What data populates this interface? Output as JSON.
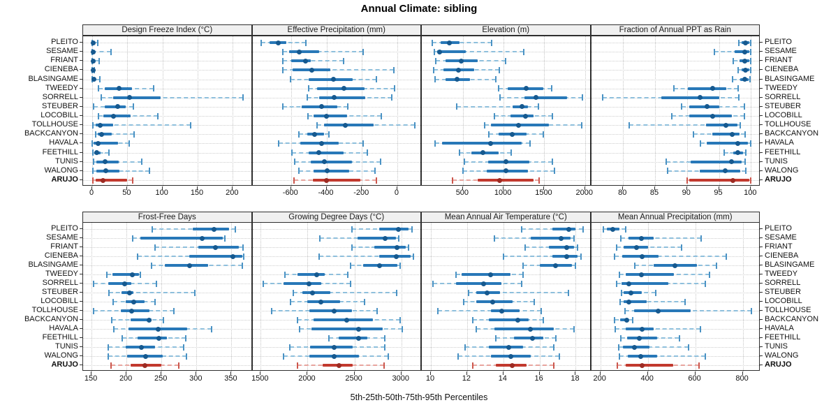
{
  "title": "Annual Climate: sibling",
  "caption": "5th-25th-50th-75th-95th Percentiles",
  "stations": [
    "PLEITO",
    "SESAME",
    "FRIANT",
    "CIENEBA",
    "BLASINGAME",
    "TWEEDY",
    "SORRELL",
    "STEUBER",
    "LOCOBILL",
    "TOLLHOUSE",
    "BACKCANYON",
    "HAVALA",
    "FEETHILL",
    "TUNIS",
    "WALONG",
    "ARUJO"
  ],
  "highlight_station": "ARUJO",
  "colors": {
    "blue_dot": "#16598f",
    "blue_bar": "#2878b8",
    "blue_whisker": "#8ebfdc",
    "blue_cap": "#4a92c4",
    "red_dot": "#9c2b23",
    "red_bar": "#c2392e",
    "red_whisker": "#e8a49e",
    "red_cap": "#cc574d",
    "strip_bg": "#f0f0f0",
    "grid": "#c4c4c4",
    "border": "#2f2f2f"
  },
  "chart_data": [
    {
      "type": "scatter",
      "variant": "percentile-dotplot",
      "row": 0,
      "col": 0,
      "title": "Design Freeze Index (°C)",
      "ticks": [
        0,
        50,
        100,
        150,
        200
      ],
      "xlim": [
        -13,
        228
      ],
      "percentile_labels": [
        5,
        25,
        50,
        75,
        95
      ],
      "values": [
        [
          0,
          0,
          1,
          3,
          8
        ],
        [
          0,
          0,
          1,
          3,
          27
        ],
        [
          0,
          0,
          1,
          2,
          10
        ],
        [
          0,
          0,
          1,
          1,
          3
        ],
        [
          0,
          1,
          2,
          4,
          11
        ],
        [
          9,
          18,
          38,
          57,
          87
        ],
        [
          13,
          30,
          53,
          97,
          215
        ],
        [
          2,
          18,
          36,
          48,
          59
        ],
        [
          9,
          16,
          30,
          55,
          93
        ],
        [
          1,
          5,
          11,
          30,
          140
        ],
        [
          5,
          8,
          13,
          28,
          60
        ],
        [
          0,
          2,
          8,
          37,
          53
        ],
        [
          1,
          3,
          6,
          12,
          24
        ],
        [
          2,
          6,
          18,
          38,
          70
        ],
        [
          1,
          6,
          19,
          39,
          81
        ],
        [
          1,
          5,
          15,
          50,
          58
        ]
      ]
    },
    {
      "type": "scatter",
      "variant": "percentile-dotplot",
      "row": 0,
      "col": 1,
      "title": "Effective Precipitation (mm)",
      "ticks": [
        -600,
        -400,
        -200,
        0
      ],
      "xlim": [
        -818,
        138
      ],
      "percentile_labels": [
        5,
        25,
        50,
        75,
        95
      ],
      "values": [
        [
          -770,
          -720,
          -673,
          -625,
          -515
        ],
        [
          -645,
          -610,
          -555,
          -440,
          -195
        ],
        [
          -645,
          -600,
          -517,
          -490,
          -305
        ],
        [
          -645,
          -590,
          -483,
          -378,
          -20
        ],
        [
          -605,
          -500,
          -360,
          -252,
          -120
        ],
        [
          -500,
          -453,
          -303,
          -185,
          -15
        ],
        [
          -510,
          -440,
          -358,
          -180,
          -30
        ],
        [
          -648,
          -540,
          -426,
          -340,
          -280
        ],
        [
          -505,
          -473,
          -401,
          -283,
          -90
        ],
        [
          -455,
          -412,
          -293,
          -133,
          98
        ],
        [
          -555,
          -507,
          -469,
          -412,
          -385
        ],
        [
          -670,
          -548,
          -429,
          -330,
          -195
        ],
        [
          -595,
          -500,
          -442,
          -305,
          -170
        ],
        [
          -578,
          -487,
          -412,
          -256,
          -95
        ],
        [
          -555,
          -473,
          -396,
          -270,
          -125
        ],
        [
          -582,
          -478,
          -399,
          -208,
          -120
        ]
      ]
    },
    {
      "type": "scatter",
      "variant": "percentile-dotplot",
      "row": 0,
      "col": 2,
      "title": "Elevation (m)",
      "ticks": [
        500,
        1000,
        1500,
        2000
      ],
      "xlim": [
        -5,
        2075
      ],
      "percentile_labels": [
        5,
        25,
        50,
        75,
        95
      ],
      "values": [
        [
          120,
          230,
          330,
          460,
          850
        ],
        [
          150,
          180,
          217,
          535,
          1250
        ],
        [
          170,
          290,
          483,
          680,
          1025
        ],
        [
          140,
          260,
          442,
          635,
          945
        ],
        [
          160,
          290,
          425,
          590,
          900
        ],
        [
          940,
          1050,
          1280,
          1490,
          1590
        ],
        [
          955,
          1255,
          1400,
          1775,
          1965
        ],
        [
          420,
          1110,
          1223,
          1300,
          1430
        ],
        [
          890,
          1085,
          1265,
          1370,
          1600
        ],
        [
          770,
          840,
          1185,
          1560,
          1960
        ],
        [
          820,
          940,
          1107,
          1285,
          1490
        ],
        [
          160,
          245,
          838,
          1225,
          1325
        ],
        [
          457,
          607,
          743,
          940,
          1090
        ],
        [
          520,
          810,
          1025,
          1315,
          1595
        ],
        [
          500,
          795,
          1025,
          1300,
          1625
        ],
        [
          370,
          680,
          955,
          1370,
          1440
        ]
      ]
    },
    {
      "type": "scatter",
      "variant": "percentile-dotplot",
      "row": 0,
      "col": 3,
      "title": "Fraction of Annual PPT as Rain",
      "ticks": [
        80,
        85,
        90,
        95,
        100
      ],
      "xlim": [
        75,
        101.5
      ],
      "percentile_labels": [
        5,
        25,
        50,
        75,
        95
      ],
      "values": [
        [
          98.1,
          98.5,
          99.1,
          99.8,
          100
        ],
        [
          94.3,
          97.5,
          99,
          99.8,
          100
        ],
        [
          97.2,
          98.2,
          99,
          99.7,
          100
        ],
        [
          98,
          98.5,
          99.1,
          99.8,
          100
        ],
        [
          97.1,
          98.3,
          99,
          99.6,
          99.9
        ],
        [
          88,
          90.1,
          94,
          96.1,
          98
        ],
        [
          76.8,
          86,
          92,
          95,
          98.1
        ],
        [
          89.2,
          90.3,
          93.1,
          95,
          99
        ],
        [
          87.6,
          90.3,
          94,
          97,
          99
        ],
        [
          81,
          93,
          96.1,
          97.9,
          98.3
        ],
        [
          91,
          94,
          97.1,
          98.2,
          99.1
        ],
        [
          92.1,
          93.1,
          98,
          99.5,
          100
        ],
        [
          95.8,
          97.2,
          98,
          98.8,
          99.2
        ],
        [
          86.8,
          90.6,
          97,
          98.5,
          99.1
        ],
        [
          87,
          92,
          96,
          98.3,
          99.2
        ],
        [
          90,
          90.4,
          97.2,
          99.8,
          100
        ]
      ]
    },
    {
      "type": "scatter",
      "variant": "percentile-dotplot",
      "row": 1,
      "col": 0,
      "title": "Frost-Free Days",
      "ticks": [
        150,
        200,
        250,
        300,
        350
      ],
      "xlim": [
        138,
        380
      ],
      "percentile_labels": [
        5,
        25,
        50,
        75,
        95
      ],
      "values": [
        [
          237,
          295,
          325,
          347,
          356
        ],
        [
          209,
          220,
          308,
          338,
          341
        ],
        [
          241,
          303,
          327,
          361,
          367
        ],
        [
          216,
          290,
          352,
          366,
          368
        ],
        [
          236,
          255,
          290,
          317,
          366
        ],
        [
          172,
          180,
          208,
          218,
          220
        ],
        [
          153,
          174,
          197,
          207,
          243
        ],
        [
          175,
          193,
          204,
          210,
          298
        ],
        [
          181,
          199,
          210,
          226,
          241
        ],
        [
          153,
          192,
          207,
          233,
          268
        ],
        [
          179,
          206,
          232,
          236,
          253
        ],
        [
          182,
          203,
          245,
          287,
          322
        ],
        [
          194,
          216,
          246,
          258,
          285
        ],
        [
          174,
          199,
          221,
          241,
          282
        ],
        [
          174,
          201,
          227,
          252,
          286
        ],
        [
          178,
          206,
          226,
          250,
          275
        ]
      ]
    },
    {
      "type": "scatter",
      "variant": "percentile-dotplot",
      "row": 1,
      "col": 1,
      "title": "Growing Degree Days (°C)",
      "ticks": [
        1500,
        2000,
        2500,
        3000
      ],
      "xlim": [
        1412,
        3218
      ],
      "percentile_labels": [
        5,
        25,
        50,
        75,
        95
      ],
      "values": [
        [
          2475,
          2760,
          2970,
          3080,
          3115
        ],
        [
          2130,
          2530,
          2830,
          2940,
          2970
        ],
        [
          2475,
          2710,
          2950,
          3050,
          3075
        ],
        [
          2125,
          2760,
          2945,
          3100,
          3130
        ],
        [
          2455,
          2590,
          2770,
          2960,
          2990
        ],
        [
          1755,
          1895,
          2100,
          2180,
          2430
        ],
        [
          1525,
          1745,
          2015,
          2145,
          2455
        ],
        [
          1850,
          1945,
          2050,
          2245,
          2950
        ],
        [
          1820,
          1995,
          2145,
          2345,
          2610
        ],
        [
          1620,
          2020,
          2280,
          2470,
          2740
        ],
        [
          1895,
          2060,
          2420,
          2700,
          2990
        ],
        [
          1915,
          2040,
          2545,
          2800,
          3010
        ],
        [
          2230,
          2330,
          2545,
          2640,
          2820
        ],
        [
          1810,
          2030,
          2280,
          2480,
          2820
        ],
        [
          1745,
          2020,
          2280,
          2550,
          2860
        ],
        [
          1890,
          2160,
          2335,
          2480,
          2815
        ]
      ]
    },
    {
      "type": "scatter",
      "variant": "percentile-dotplot",
      "row": 1,
      "col": 2,
      "title": "Mean Annual Air Temperature (°C)",
      "ticks": [
        10,
        12,
        14,
        16,
        18
      ],
      "xlim": [
        9.5,
        18.85
      ],
      "percentile_labels": [
        5,
        25,
        50,
        75,
        95
      ],
      "values": [
        [
          15.0,
          16.7,
          17.6,
          18.0,
          18.4
        ],
        [
          13.5,
          15.5,
          17.2,
          17.7,
          17.9
        ],
        [
          15.2,
          16.5,
          17.5,
          17.9,
          18.1
        ],
        [
          14.0,
          16.7,
          17.5,
          18.1,
          18.3
        ],
        [
          15.1,
          16.0,
          16.9,
          17.8,
          18.0
        ],
        [
          11.4,
          11.7,
          13.3,
          14.4,
          15.1
        ],
        [
          10.1,
          11.4,
          12.9,
          13.9,
          15.0
        ],
        [
          12.1,
          12.5,
          13.1,
          13.8,
          17.6
        ],
        [
          11.8,
          12.5,
          13.4,
          14.5,
          15.7
        ],
        [
          10.4,
          13.3,
          13.9,
          14.9,
          16.1
        ],
        [
          12.3,
          13.2,
          14.8,
          15.4,
          16.2
        ],
        [
          12.5,
          13.5,
          15.5,
          16.8,
          17.9
        ],
        [
          13.6,
          14.6,
          15.6,
          16.2,
          16.9
        ],
        [
          11.9,
          13.2,
          14.3,
          15.1,
          16.8
        ],
        [
          11.5,
          13.3,
          14.4,
          15.5,
          17.1
        ],
        [
          12.3,
          13.6,
          14.5,
          15.3,
          16.8
        ]
      ]
    },
    {
      "type": "scatter",
      "variant": "percentile-dotplot",
      "row": 1,
      "col": 3,
      "title": "Mean Annual Precipitation (mm)",
      "ticks": [
        200,
        400,
        600,
        800
      ],
      "xlim": [
        161,
        875
      ],
      "percentile_labels": [
        5,
        25,
        50,
        75,
        95
      ],
      "values": [
        [
          213,
          228,
          252,
          281,
          306
        ],
        [
          287,
          318,
          372,
          426,
          626
        ],
        [
          267,
          298,
          352,
          402,
          542
        ],
        [
          259,
          293,
          375,
          446,
          731
        ],
        [
          346,
          424,
          513,
          608,
          690
        ],
        [
          281,
          306,
          372,
          510,
          660
        ],
        [
          267,
          289,
          321,
          485,
          641
        ],
        [
          290,
          298,
          330,
          375,
          434
        ],
        [
          282,
          298,
          321,
          395,
          556
        ],
        [
          303,
          343,
          444,
          582,
          837
        ],
        [
          261,
          282,
          310,
          318,
          336
        ],
        [
          264,
          308,
          375,
          426,
          621
        ],
        [
          287,
          313,
          364,
          439,
          532
        ],
        [
          276,
          296,
          343,
          407,
          572
        ],
        [
          281,
          316,
          370,
          439,
          643
        ],
        [
          272,
          308,
          375,
          507,
          616
        ]
      ]
    }
  ]
}
